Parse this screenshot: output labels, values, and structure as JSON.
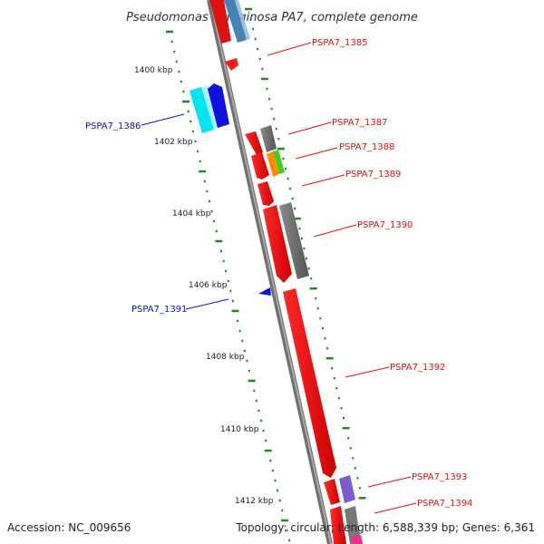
{
  "title": "Pseudomonas aeruginosa PA7, complete genome",
  "accession": "Accession: NC_009656",
  "summary": "Topology: circular; Length: 6,588,339 bp; Genes: 6,361",
  "ticks": [
    "1400 kbp",
    "1402 kbp",
    "1404 kbp",
    "1406 kbp",
    "1408 kbp",
    "1410 kbp",
    "1412 kbp"
  ],
  "genes": [
    {
      "id": "PSPA7_1385",
      "color": "#dd1111"
    },
    {
      "id": "PSPA7_1386",
      "color": "#1111bb"
    },
    {
      "id": "PSPA7_1387",
      "color": "#dd1111"
    },
    {
      "id": "PSPA7_1388",
      "color": "#dd1111"
    },
    {
      "id": "PSPA7_1389",
      "color": "#dd1111"
    },
    {
      "id": "PSPA7_1390",
      "color": "#dd1111"
    },
    {
      "id": "PSPA7_1391",
      "color": "#1111bb"
    },
    {
      "id": "PSPA7_1392",
      "color": "#dd1111"
    },
    {
      "id": "PSPA7_1393",
      "color": "#dd1111"
    },
    {
      "id": "PSPA7_1394",
      "color": "#dd1111"
    }
  ],
  "colors": {
    "forward_strand": "#ee1111",
    "reverse_strand": "#1111ee",
    "backbone": "#808080",
    "tick_marks": "#228822"
  }
}
